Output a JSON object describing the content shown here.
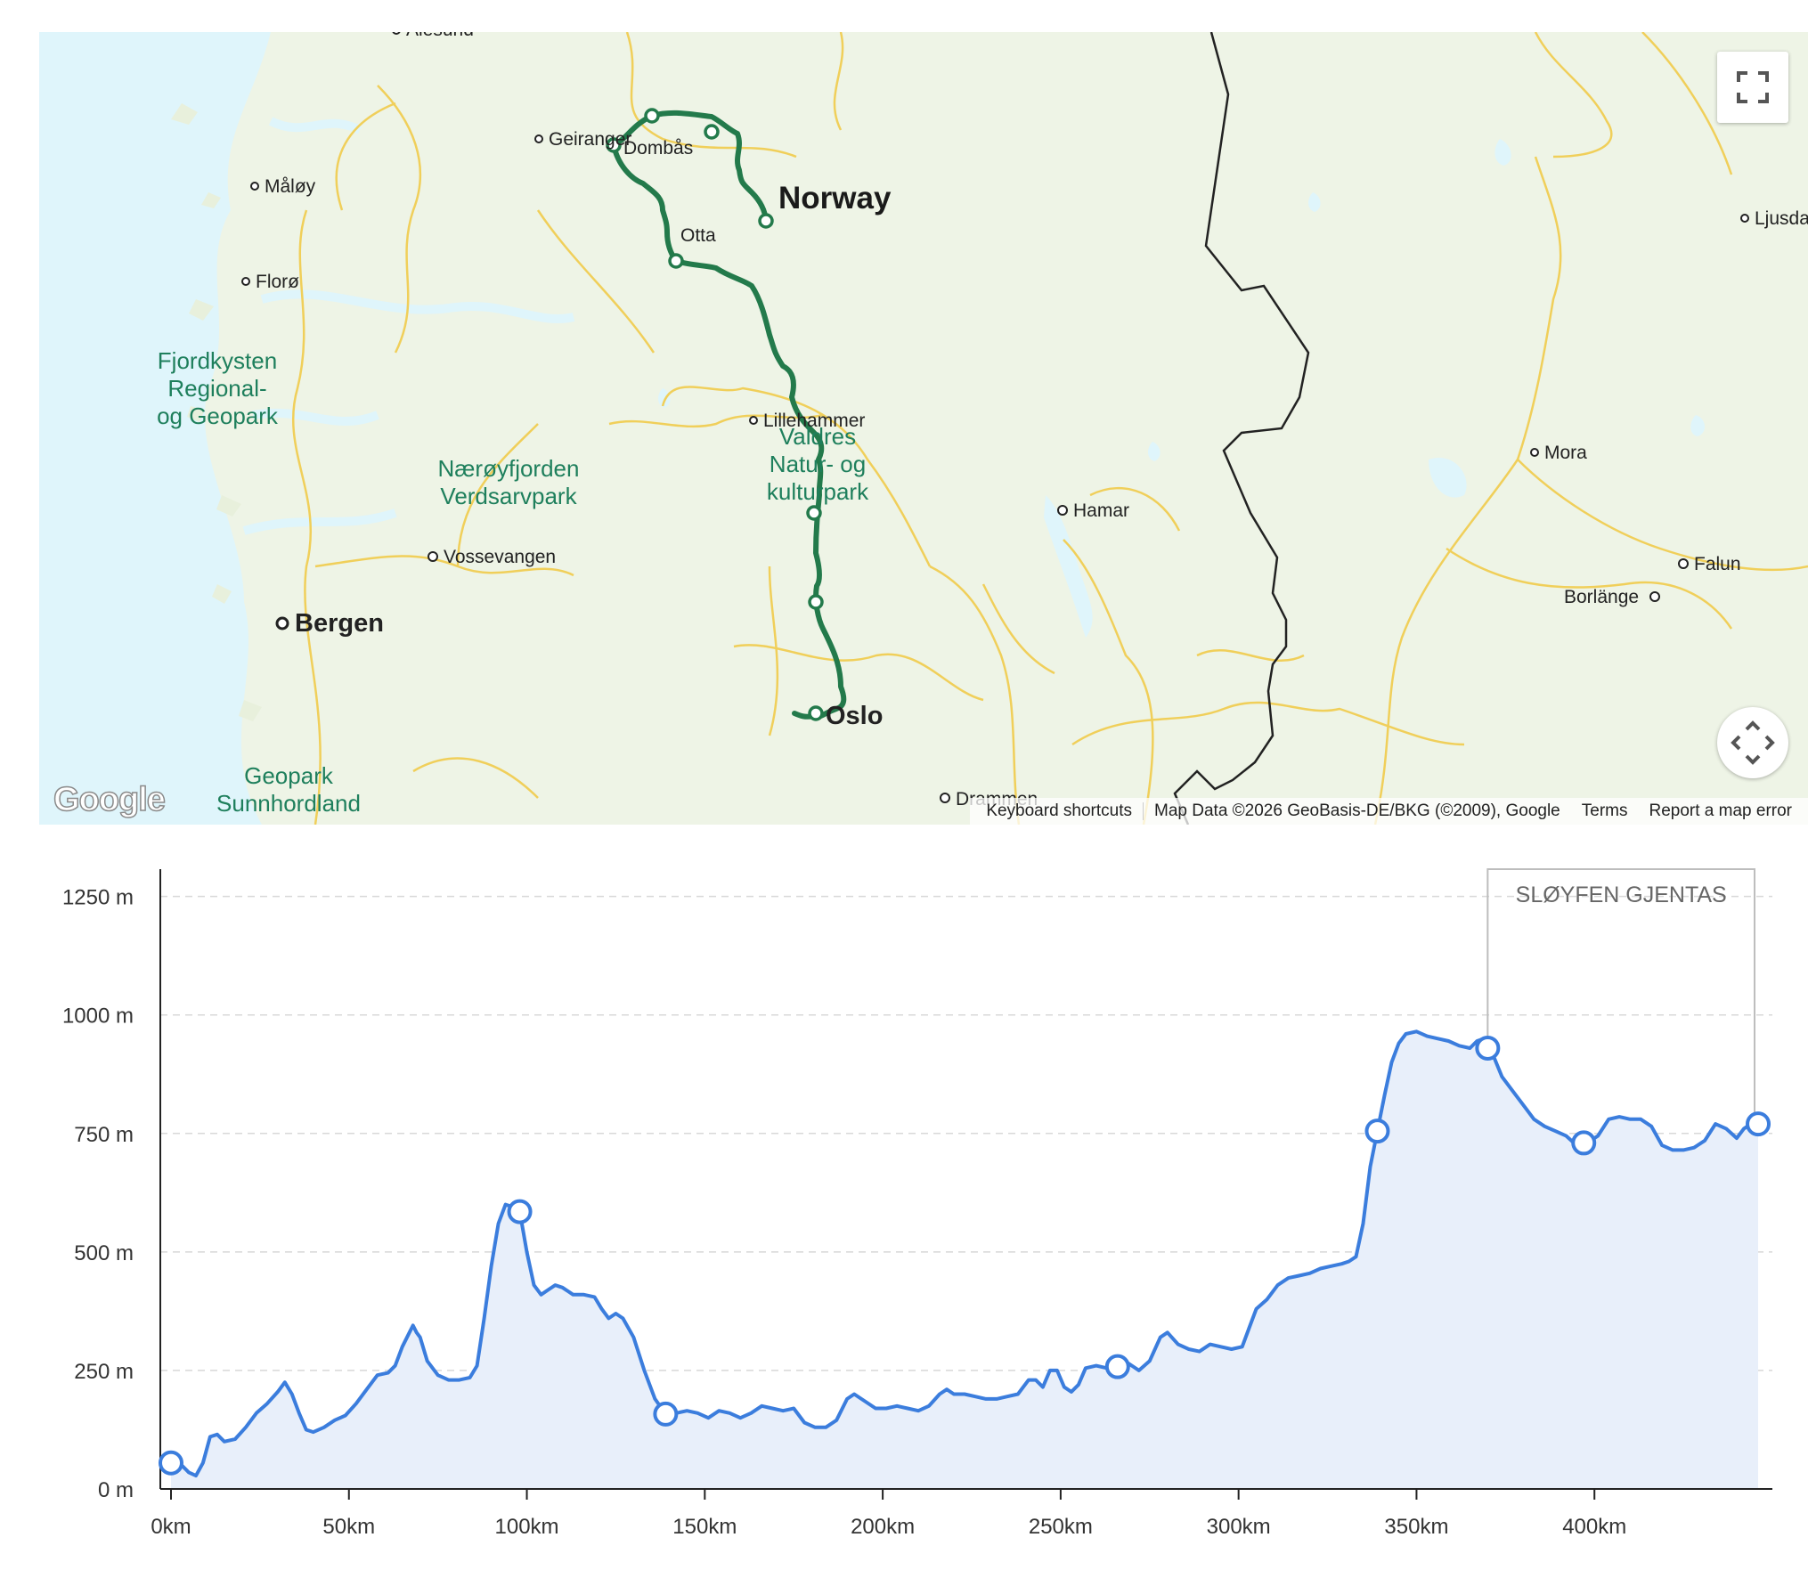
{
  "map": {
    "country_label": "Norway",
    "cities": [
      {
        "name": "Ålesund",
        "major": false
      },
      {
        "name": "Geiranger",
        "major": false
      },
      {
        "name": "Måløy",
        "major": false
      },
      {
        "name": "Florø",
        "major": false
      },
      {
        "name": "Dombås",
        "major": false
      },
      {
        "name": "Otta",
        "major": false
      },
      {
        "name": "Lillehammer",
        "major": false
      },
      {
        "name": "Hamar",
        "major": false
      },
      {
        "name": "Vossevangen",
        "major": false
      },
      {
        "name": "Bergen",
        "major": true
      },
      {
        "name": "Oslo",
        "major": true
      },
      {
        "name": "Drammen",
        "major": false
      },
      {
        "name": "Ljusdal",
        "major": false
      },
      {
        "name": "Mora",
        "major": false
      },
      {
        "name": "Falun",
        "major": false
      },
      {
        "name": "Borlänge",
        "major": false
      }
    ],
    "parks": [
      "Fjordkysten Regional- og Geopark",
      "Nærøyfjorden Verdsarvpark",
      "Valdres Natur- og kulturpark",
      "Geopark Sunnhordland"
    ],
    "route_color": "#237a4b",
    "controls": {
      "fullscreen_icon": "fullscreen-icon",
      "camera_icon": "camera-control-icon"
    },
    "logo": "Google",
    "attribution": {
      "keyboard_shortcuts": "Keyboard shortcuts",
      "map_data": "Map Data ©2026 GeoBasis-DE/BKG (©2009), Google",
      "terms": "Terms",
      "report": "Report a map error"
    }
  },
  "chart_data": {
    "type": "area",
    "line_color": "#3b7ddd",
    "fill_color": "#e8effa",
    "x_ticks": [
      "0km",
      "50km",
      "100km",
      "150km",
      "200km",
      "250km",
      "300km",
      "350km",
      "400km"
    ],
    "x_tick_values": [
      0,
      50,
      100,
      150,
      200,
      250,
      300,
      350,
      400
    ],
    "y_ticks": [
      "0 m",
      "250 m",
      "500 m",
      "750 m",
      "1000 m",
      "1250 m"
    ],
    "y_tick_values": [
      0,
      250,
      500,
      750,
      1000,
      1250
    ],
    "xlim": [
      -3,
      450
    ],
    "ylim": [
      0,
      1300
    ],
    "grid": "horizontal-dashed",
    "annotation": {
      "label": "SLØYFEN GJENTAS",
      "x_start": 370,
      "x_end": 445
    },
    "profile": [
      [
        0,
        55
      ],
      [
        3,
        50
      ],
      [
        5,
        35
      ],
      [
        7,
        28
      ],
      [
        9,
        55
      ],
      [
        11,
        110
      ],
      [
        13,
        115
      ],
      [
        15,
        100
      ],
      [
        18,
        105
      ],
      [
        21,
        130
      ],
      [
        24,
        160
      ],
      [
        27,
        180
      ],
      [
        30,
        205
      ],
      [
        32,
        225
      ],
      [
        34,
        200
      ],
      [
        36,
        160
      ],
      [
        38,
        125
      ],
      [
        40,
        120
      ],
      [
        43,
        130
      ],
      [
        46,
        145
      ],
      [
        49,
        155
      ],
      [
        52,
        180
      ],
      [
        55,
        210
      ],
      [
        58,
        240
      ],
      [
        61,
        245
      ],
      [
        63,
        260
      ],
      [
        65,
        300
      ],
      [
        67,
        330
      ],
      [
        68,
        345
      ],
      [
        69,
        330
      ],
      [
        70,
        320
      ],
      [
        72,
        270
      ],
      [
        75,
        240
      ],
      [
        78,
        230
      ],
      [
        81,
        230
      ],
      [
        84,
        235
      ],
      [
        86,
        260
      ],
      [
        88,
        360
      ],
      [
        90,
        470
      ],
      [
        92,
        560
      ],
      [
        94,
        600
      ],
      [
        96,
        595
      ],
      [
        98,
        585
      ],
      [
        100,
        500
      ],
      [
        102,
        430
      ],
      [
        104,
        410
      ],
      [
        106,
        420
      ],
      [
        108,
        430
      ],
      [
        110,
        425
      ],
      [
        113,
        410
      ],
      [
        116,
        410
      ],
      [
        119,
        405
      ],
      [
        121,
        380
      ],
      [
        123,
        360
      ],
      [
        125,
        370
      ],
      [
        127,
        360
      ],
      [
        130,
        320
      ],
      [
        133,
        250
      ],
      [
        136,
        190
      ],
      [
        139,
        158
      ],
      [
        142,
        160
      ],
      [
        145,
        165
      ],
      [
        148,
        160
      ],
      [
        151,
        150
      ],
      [
        154,
        165
      ],
      [
        157,
        160
      ],
      [
        160,
        150
      ],
      [
        163,
        160
      ],
      [
        166,
        175
      ],
      [
        169,
        170
      ],
      [
        172,
        165
      ],
      [
        175,
        170
      ],
      [
        178,
        140
      ],
      [
        181,
        130
      ],
      [
        184,
        130
      ],
      [
        187,
        145
      ],
      [
        190,
        190
      ],
      [
        192,
        200
      ],
      [
        195,
        185
      ],
      [
        198,
        170
      ],
      [
        201,
        170
      ],
      [
        204,
        175
      ],
      [
        207,
        170
      ],
      [
        210,
        165
      ],
      [
        213,
        175
      ],
      [
        216,
        200
      ],
      [
        218,
        210
      ],
      [
        220,
        200
      ],
      [
        223,
        200
      ],
      [
        226,
        195
      ],
      [
        229,
        190
      ],
      [
        232,
        190
      ],
      [
        235,
        195
      ],
      [
        238,
        200
      ],
      [
        241,
        230
      ],
      [
        243,
        230
      ],
      [
        245,
        215
      ],
      [
        247,
        250
      ],
      [
        249,
        250
      ],
      [
        251,
        215
      ],
      [
        253,
        205
      ],
      [
        255,
        220
      ],
      [
        257,
        255
      ],
      [
        260,
        260
      ],
      [
        263,
        255
      ],
      [
        266,
        258
      ],
      [
        269,
        265
      ],
      [
        272,
        250
      ],
      [
        275,
        270
      ],
      [
        278,
        320
      ],
      [
        280,
        330
      ],
      [
        283,
        305
      ],
      [
        286,
        295
      ],
      [
        289,
        290
      ],
      [
        292,
        305
      ],
      [
        295,
        300
      ],
      [
        298,
        295
      ],
      [
        301,
        300
      ],
      [
        303,
        340
      ],
      [
        305,
        380
      ],
      [
        308,
        400
      ],
      [
        311,
        430
      ],
      [
        314,
        445
      ],
      [
        317,
        450
      ],
      [
        320,
        455
      ],
      [
        323,
        465
      ],
      [
        326,
        470
      ],
      [
        329,
        475
      ],
      [
        331,
        480
      ],
      [
        333,
        490
      ],
      [
        335,
        560
      ],
      [
        337,
        680
      ],
      [
        339,
        755
      ],
      [
        341,
        830
      ],
      [
        343,
        900
      ],
      [
        345,
        940
      ],
      [
        347,
        960
      ],
      [
        350,
        965
      ],
      [
        353,
        955
      ],
      [
        356,
        950
      ],
      [
        359,
        945
      ],
      [
        362,
        935
      ],
      [
        365,
        930
      ],
      [
        367,
        945
      ],
      [
        369,
        950
      ],
      [
        371,
        925
      ],
      [
        374,
        870
      ],
      [
        377,
        840
      ],
      [
        380,
        810
      ],
      [
        383,
        780
      ],
      [
        386,
        765
      ],
      [
        389,
        755
      ],
      [
        392,
        745
      ],
      [
        395,
        725
      ],
      [
        398,
        730
      ],
      [
        401,
        745
      ],
      [
        404,
        780
      ],
      [
        407,
        785
      ],
      [
        410,
        780
      ],
      [
        413,
        780
      ],
      [
        416,
        765
      ],
      [
        419,
        725
      ],
      [
        422,
        715
      ],
      [
        425,
        715
      ],
      [
        428,
        720
      ],
      [
        431,
        735
      ],
      [
        434,
        770
      ],
      [
        437,
        760
      ],
      [
        440,
        740
      ],
      [
        442,
        760
      ],
      [
        444,
        770
      ],
      [
        446,
        770
      ]
    ],
    "markers": [
      [
        0,
        55
      ],
      [
        98,
        585
      ],
      [
        139,
        158
      ],
      [
        266,
        258
      ],
      [
        339,
        755
      ],
      [
        370,
        930
      ],
      [
        397,
        730
      ],
      [
        446,
        770
      ]
    ]
  }
}
